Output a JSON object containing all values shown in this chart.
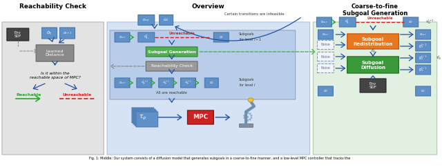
{
  "title": "Fig. 1: Middle: Our system consists of a diffusion model that generates subgoals in a coarse-to-fine manner, and a low-level MPC controller that tracks the",
  "section1_title": "Reachability Check",
  "section2_title": "Overview",
  "section3_title": "Coarse-to-fine\nSubgoal Generation",
  "bg_left": "#e0e0e0",
  "bg_mid": "#c5d8f0",
  "bg_mid_inner": "#b0c8e8",
  "bg_right": "#d5ead5",
  "box_blue": "#6090c8",
  "box_blue_edge": "#4070a8",
  "box_green_sg": "#50b050",
  "box_green_sg_edge": "#308030",
  "box_orange": "#e87820",
  "box_orange_edge": "#c05510",
  "box_green_diff": "#3a9a3a",
  "box_green_diff_edge": "#207020",
  "box_red_mpc": "#cc2222",
  "box_gray_ld": "#8a8a8a",
  "box_gray_rc": "#9a9a9a",
  "box_dark": "#444444",
  "text_green": "#22aa22",
  "text_red": "#cc2222",
  "arrow_blue": "#2050a0",
  "arrow_green_dashed": "#44aa44",
  "arrow_gray_dashed": "#888888"
}
